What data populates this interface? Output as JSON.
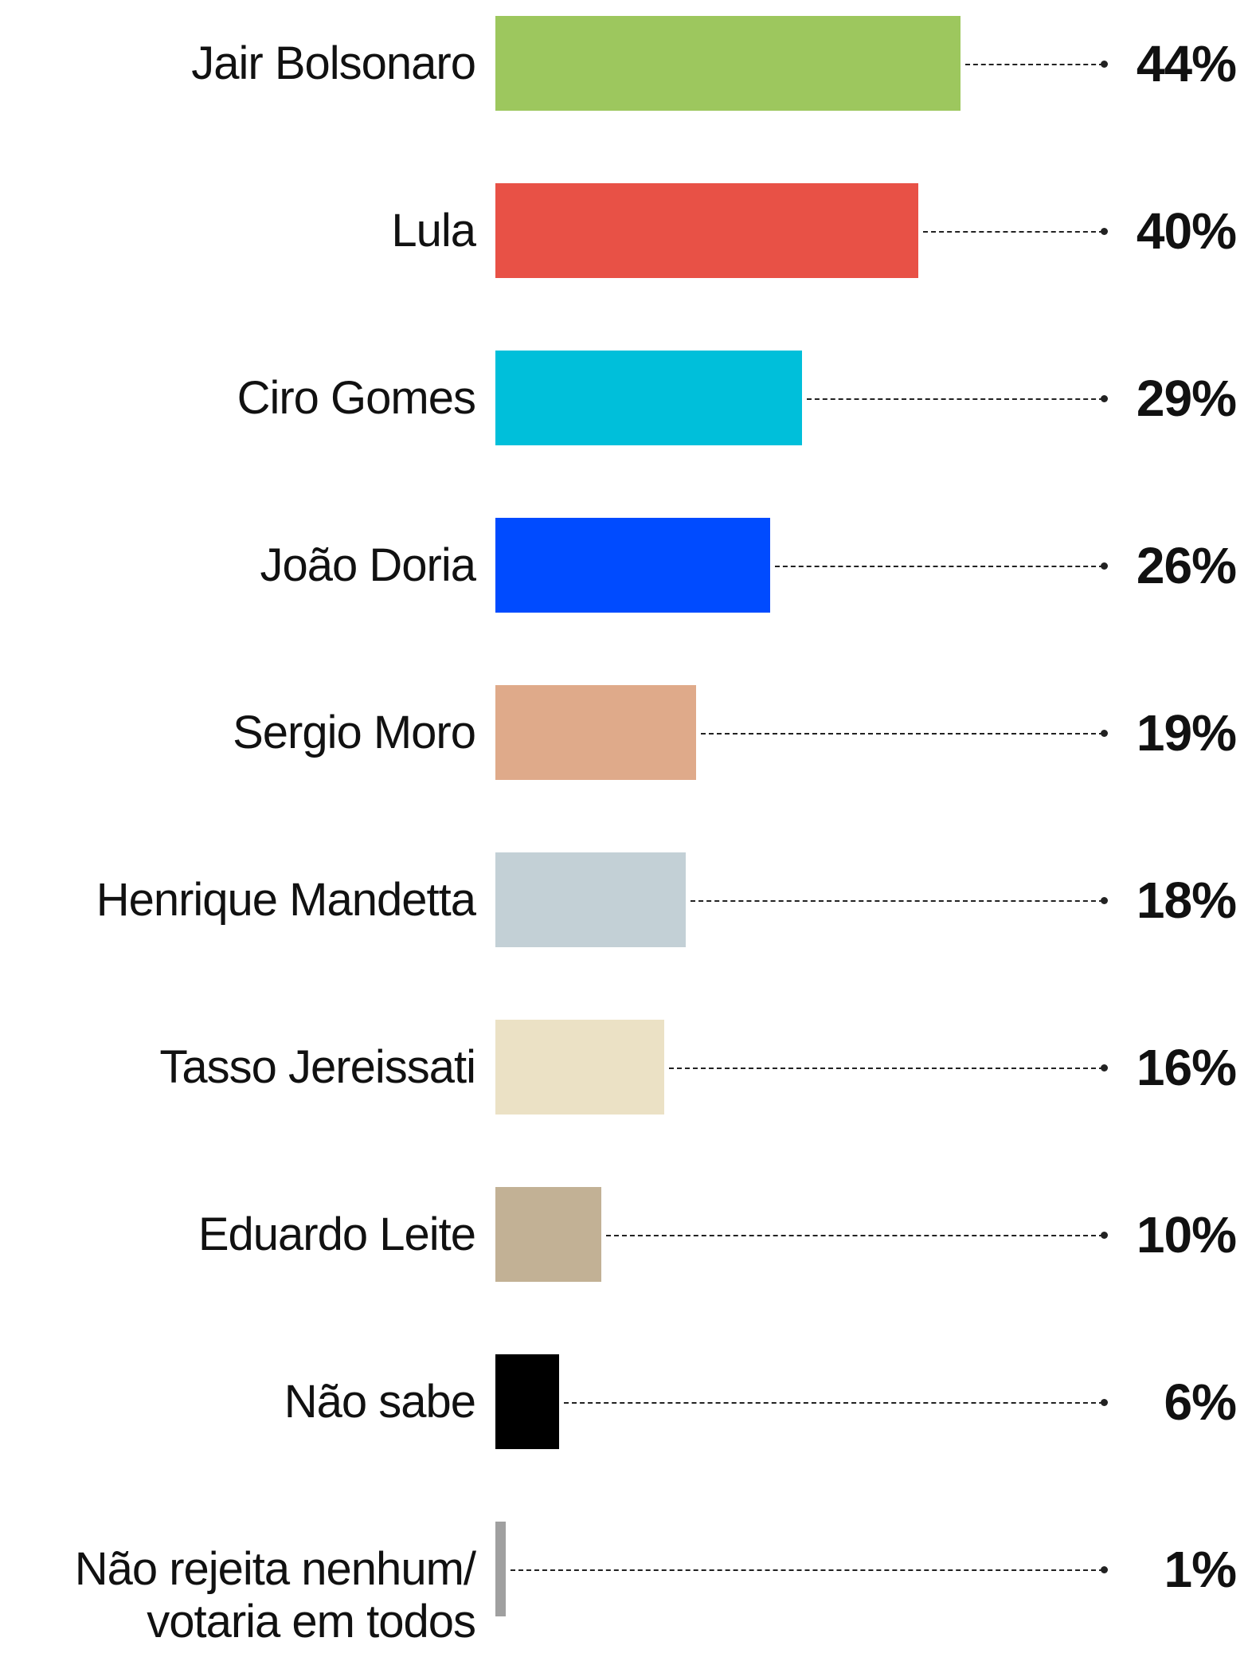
{
  "chart_data": {
    "type": "bar",
    "orientation": "horizontal",
    "categories": [
      "Jair Bolsonaro",
      "Lula",
      "Ciro Gomes",
      "João Doria",
      "Sergio Moro",
      "Henrique Mandetta",
      "Tasso Jereissati",
      "Eduardo Leite",
      "Não sabe",
      "Não rejeita nenhum/ votaria em todos"
    ],
    "values": [
      44,
      40,
      29,
      26,
      19,
      18,
      16,
      10,
      6,
      1
    ],
    "value_labels": [
      "44%",
      "40%",
      "29%",
      "26%",
      "19%",
      "18%",
      "16%",
      "10%",
      "6%",
      "1%"
    ],
    "colors": [
      "#9dc75e",
      "#e85146",
      "#00bfda",
      "#004bff",
      "#dfaa8a",
      "#c3d0d6",
      "#ebe1c5",
      "#c2b195",
      "#000000",
      "#a0a0a0"
    ]
  }
}
